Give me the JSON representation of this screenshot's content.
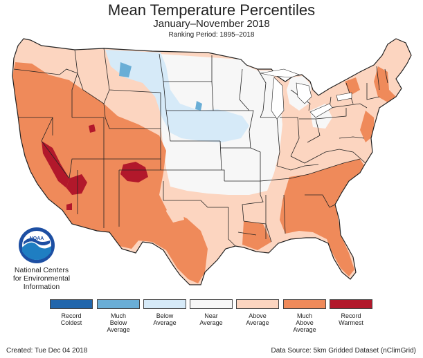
{
  "header": {
    "title": "Mean Temperature Percentiles",
    "subtitle": "January–November 2018",
    "period": "Ranking Period: 1895–2018"
  },
  "map": {
    "region": "Contiguous United States",
    "palette": {
      "record_coldest": "#2166ac",
      "much_below": "#6aaed6",
      "below": "#d6eaf8",
      "near": "#f7f7f7",
      "above": "#fcd5c0",
      "much_above": "#ef8a5a",
      "record_warmest": "#b2182b"
    }
  },
  "logo": {
    "text": "NOAA",
    "org_lines": [
      "National Centers",
      "for Environmental",
      "Information"
    ]
  },
  "legend": {
    "items": [
      {
        "label": "Record\nColdest",
        "color": "#2166ac"
      },
      {
        "label": "Much\nBelow\nAverage",
        "color": "#6aaed6"
      },
      {
        "label": "Below\nAverage",
        "color": "#d6eaf8"
      },
      {
        "label": "Near\nAverage",
        "color": "#f7f7f7"
      },
      {
        "label": "Above\nAverage",
        "color": "#fcd5c0"
      },
      {
        "label": "Much\nAbove\nAverage",
        "color": "#ef8a5a"
      },
      {
        "label": "Record\nWarmest",
        "color": "#b2182b"
      }
    ]
  },
  "footer": {
    "created": "Created: Tue Dec 04 2018",
    "source": "Data Source: 5km Gridded Dataset (nClimGrid)"
  }
}
